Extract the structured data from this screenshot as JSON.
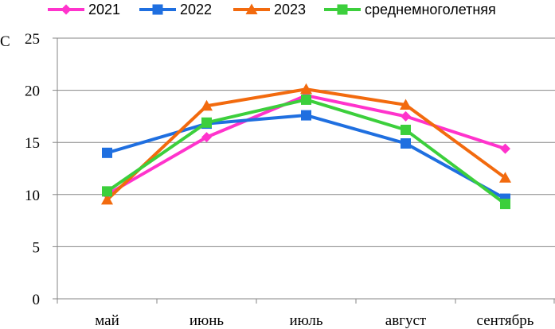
{
  "chart_data": {
    "type": "line",
    "title": "",
    "xlabel": "",
    "ylabel": "C",
    "ylim": [
      0,
      25
    ],
    "yticks": [
      0,
      5,
      10,
      15,
      20,
      25
    ],
    "grid": "horizontal",
    "legend_position": "top",
    "categories": [
      "май",
      "июнь",
      "июль",
      "август",
      "сентябрь"
    ],
    "series": [
      {
        "name": "2021",
        "color": "#ff33cc",
        "marker": "diamond",
        "values": [
          10.0,
          15.5,
          19.5,
          17.5,
          14.4
        ]
      },
      {
        "name": "2022",
        "color": "#1f6fe0",
        "marker": "square",
        "values": [
          14.0,
          16.8,
          17.6,
          14.9,
          9.6
        ]
      },
      {
        "name": "2023",
        "color": "#f26a0e",
        "marker": "triangle",
        "values": [
          9.5,
          18.5,
          20.1,
          18.6,
          11.6
        ]
      },
      {
        "name": "среднемноголетняя",
        "color": "#3ccf3c",
        "marker": "square",
        "values": [
          10.3,
          16.9,
          19.1,
          16.2,
          9.1
        ]
      }
    ]
  }
}
